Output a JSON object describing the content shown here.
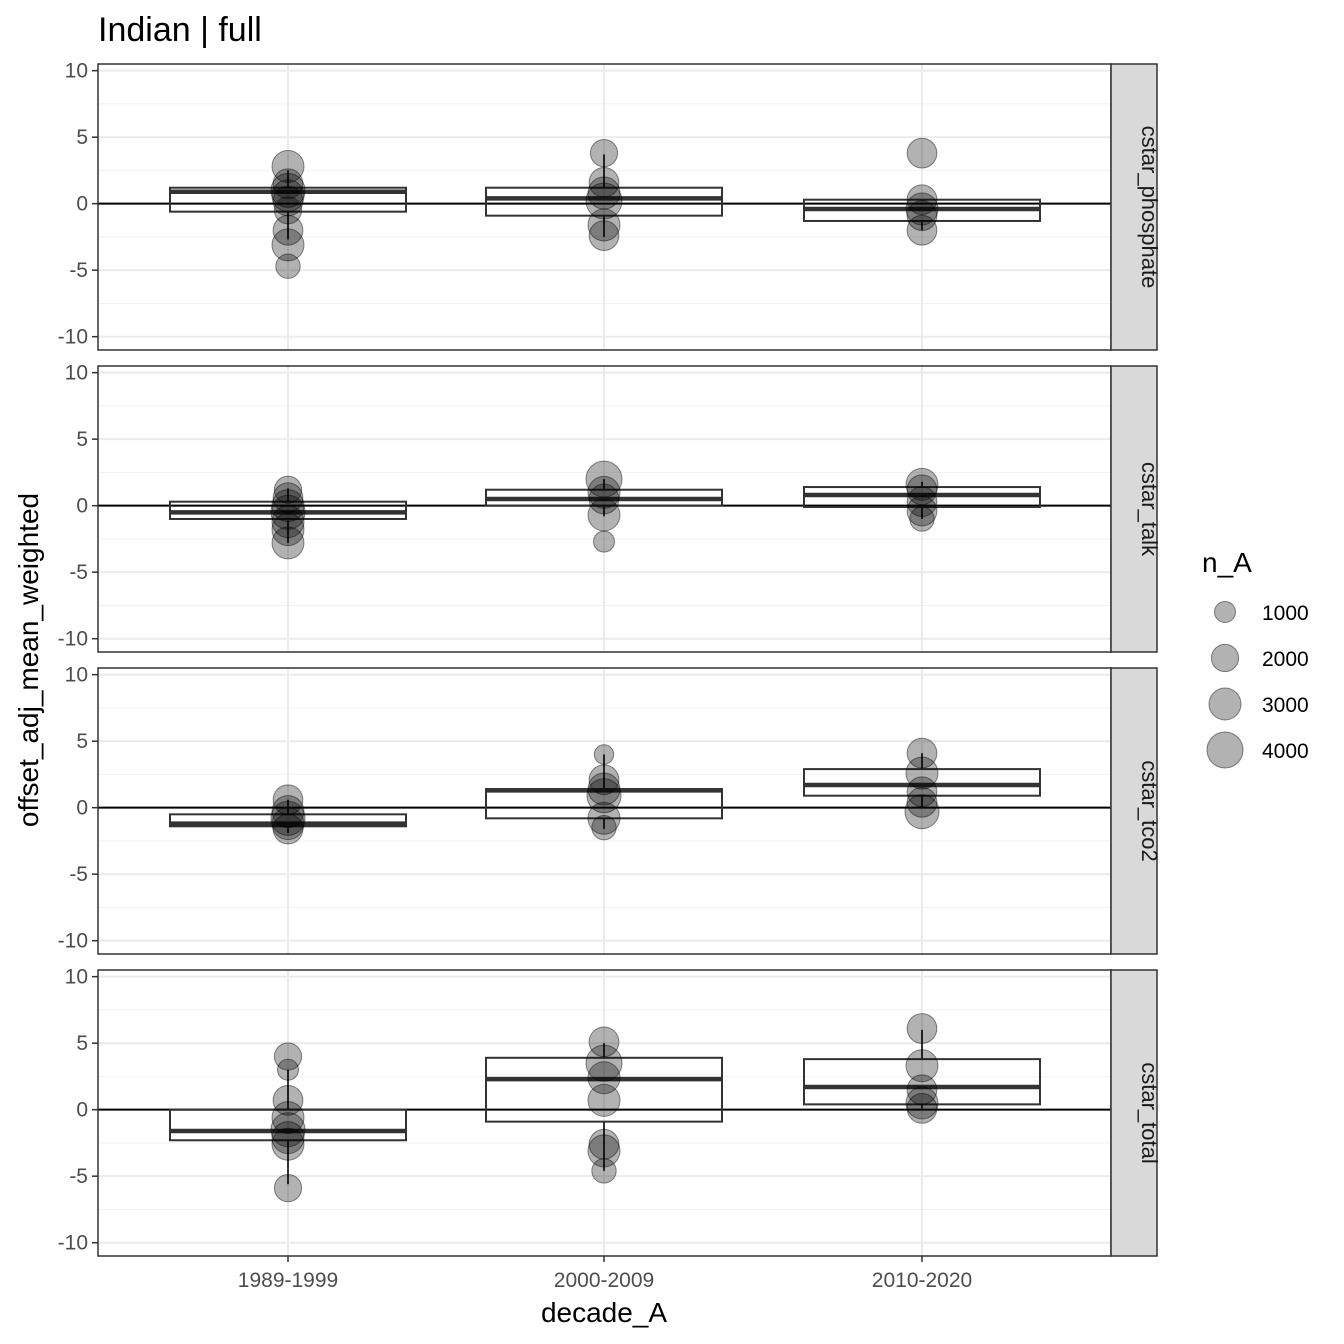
{
  "chart_data": {
    "type": "boxplot",
    "title": "Indian | full",
    "xlabel": "decade_A",
    "ylabel": "offset_adj_mean_weighted",
    "categories": [
      "1989-1999",
      "2000-2009",
      "2010-2020"
    ],
    "ylim": [
      -11,
      10.5
    ],
    "yticks": [
      10,
      5,
      0,
      -5,
      -10
    ],
    "grid": true,
    "hline": 0,
    "legend": {
      "title": "n_A",
      "position": "right",
      "entries": [
        {
          "label": "1000",
          "size": 1000
        },
        {
          "label": "2000",
          "size": 2000
        },
        {
          "label": "3000",
          "size": 3000
        },
        {
          "label": "4000",
          "size": 4000
        }
      ]
    },
    "facets": [
      {
        "label": "cstar_phosphate",
        "boxes": [
          {
            "category": "1989-1999",
            "q1": -0.6,
            "median": 0.9,
            "q3": 1.2,
            "whisker_low": -2.7,
            "whisker_high": 2.5
          },
          {
            "category": "2000-2009",
            "q1": -0.9,
            "median": 0.4,
            "q3": 1.2,
            "whisker_low": -2.5,
            "whisker_high": 3.7
          },
          {
            "category": "2010-2020",
            "q1": -1.3,
            "median": -0.4,
            "q3": 0.3,
            "whisker_low": -2.0,
            "whisker_high": 0.3
          }
        ],
        "points": [
          {
            "category": "1989-1999",
            "y": 2.8,
            "n": 3000
          },
          {
            "category": "1989-1999",
            "y": 1.5,
            "n": 2500
          },
          {
            "category": "1989-1999",
            "y": 1.0,
            "n": 3500
          },
          {
            "category": "1989-1999",
            "y": 0.6,
            "n": 3000
          },
          {
            "category": "1989-1999",
            "y": 0.2,
            "n": 2500
          },
          {
            "category": "1989-1999",
            "y": -0.5,
            "n": 2000
          },
          {
            "category": "1989-1999",
            "y": -2.0,
            "n": 2500
          },
          {
            "category": "1989-1999",
            "y": -3.1,
            "n": 3000
          },
          {
            "category": "1989-1999",
            "y": -4.7,
            "n": 1500
          },
          {
            "category": "2000-2009",
            "y": 3.8,
            "n": 2000
          },
          {
            "category": "2000-2009",
            "y": 1.6,
            "n": 2500
          },
          {
            "category": "2000-2009",
            "y": 0.8,
            "n": 3000
          },
          {
            "category": "2000-2009",
            "y": 0.2,
            "n": 4000
          },
          {
            "category": "2000-2009",
            "y": -1.6,
            "n": 3000
          },
          {
            "category": "2000-2009",
            "y": -2.4,
            "n": 2500
          },
          {
            "category": "2010-2020",
            "y": 3.8,
            "n": 2500
          },
          {
            "category": "2010-2020",
            "y": 0.3,
            "n": 2500
          },
          {
            "category": "2010-2020",
            "y": -0.4,
            "n": 3000
          },
          {
            "category": "2010-2020",
            "y": -0.9,
            "n": 2500
          },
          {
            "category": "2010-2020",
            "y": -2.0,
            "n": 2500
          }
        ]
      },
      {
        "label": "cstar_talk",
        "boxes": [
          {
            "category": "1989-1999",
            "q1": -1.0,
            "median": -0.5,
            "q3": 0.3,
            "whisker_low": -2.8,
            "whisker_high": 1.3
          },
          {
            "category": "2000-2009",
            "q1": 0.0,
            "median": 0.5,
            "q3": 1.2,
            "whisker_low": -0.8,
            "whisker_high": 2.0
          },
          {
            "category": "2010-2020",
            "q1": -0.1,
            "median": 0.8,
            "q3": 1.4,
            "whisker_low": -1.0,
            "whisker_high": 1.8
          }
        ],
        "points": [
          {
            "category": "1989-1999",
            "y": 1.2,
            "n": 2000
          },
          {
            "category": "1989-1999",
            "y": 0.6,
            "n": 2500
          },
          {
            "category": "1989-1999",
            "y": 0.0,
            "n": 3000
          },
          {
            "category": "1989-1999",
            "y": -0.5,
            "n": 3500
          },
          {
            "category": "1989-1999",
            "y": -1.2,
            "n": 3000
          },
          {
            "category": "1989-1999",
            "y": -1.8,
            "n": 3000
          },
          {
            "category": "1989-1999",
            "y": -2.8,
            "n": 3000
          },
          {
            "category": "2000-2009",
            "y": 2.0,
            "n": 4000
          },
          {
            "category": "2000-2009",
            "y": 1.0,
            "n": 3000
          },
          {
            "category": "2000-2009",
            "y": 0.5,
            "n": 2500
          },
          {
            "category": "2000-2009",
            "y": -0.7,
            "n": 3000
          },
          {
            "category": "2000-2009",
            "y": -2.7,
            "n": 1000
          },
          {
            "category": "2010-2020",
            "y": 1.6,
            "n": 3000
          },
          {
            "category": "2010-2020",
            "y": 1.2,
            "n": 2500
          },
          {
            "category": "2010-2020",
            "y": 0.3,
            "n": 2500
          },
          {
            "category": "2010-2020",
            "y": -0.4,
            "n": 2500
          },
          {
            "category": "2010-2020",
            "y": -1.0,
            "n": 1500
          }
        ]
      },
      {
        "label": "cstar_tco2",
        "boxes": [
          {
            "category": "1989-1999",
            "q1": -1.4,
            "median": -1.2,
            "q3": -0.5,
            "whisker_low": -1.9,
            "whisker_high": 0.6
          },
          {
            "category": "2000-2009",
            "q1": -0.8,
            "median": 1.3,
            "q3": 1.4,
            "whisker_low": -1.6,
            "whisker_high": 4.0
          },
          {
            "category": "2010-2020",
            "q1": 0.9,
            "median": 1.7,
            "q3": 2.9,
            "whisker_low": 0.0,
            "whisker_high": 4.1
          }
        ],
        "points": [
          {
            "category": "1989-1999",
            "y": 0.6,
            "n": 2500
          },
          {
            "category": "1989-1999",
            "y": -0.3,
            "n": 3000
          },
          {
            "category": "1989-1999",
            "y": -0.8,
            "n": 3500
          },
          {
            "category": "1989-1999",
            "y": -1.2,
            "n": 3000
          },
          {
            "category": "1989-1999",
            "y": -1.6,
            "n": 2500
          },
          {
            "category": "2000-2009",
            "y": 4.0,
            "n": 800
          },
          {
            "category": "2000-2009",
            "y": 2.1,
            "n": 2500
          },
          {
            "category": "2000-2009",
            "y": 1.4,
            "n": 3000
          },
          {
            "category": "2000-2009",
            "y": 0.9,
            "n": 3500
          },
          {
            "category": "2000-2009",
            "y": -0.8,
            "n": 3000
          },
          {
            "category": "2000-2009",
            "y": -1.5,
            "n": 1500
          },
          {
            "category": "2010-2020",
            "y": 4.1,
            "n": 2500
          },
          {
            "category": "2010-2020",
            "y": 2.6,
            "n": 3000
          },
          {
            "category": "2010-2020",
            "y": 1.2,
            "n": 2500
          },
          {
            "category": "2010-2020",
            "y": 0.4,
            "n": 2500
          },
          {
            "category": "2010-2020",
            "y": -0.3,
            "n": 3500
          }
        ]
      },
      {
        "label": "cstar_total",
        "boxes": [
          {
            "category": "1989-1999",
            "q1": -2.3,
            "median": -1.6,
            "q3": 0.0,
            "whisker_low": -5.6,
            "whisker_high": 3.0
          },
          {
            "category": "2000-2009",
            "q1": -0.9,
            "median": 2.3,
            "q3": 3.9,
            "whisker_low": -4.6,
            "whisker_high": 5.0
          },
          {
            "category": "2010-2020",
            "q1": 0.4,
            "median": 1.7,
            "q3": 3.8,
            "whisker_low": 0.1,
            "whisker_high": 6.0
          }
        ],
        "points": [
          {
            "category": "1989-1999",
            "y": 4.0,
            "n": 2000
          },
          {
            "category": "1989-1999",
            "y": 3.0,
            "n": 1000
          },
          {
            "category": "1989-1999",
            "y": 0.7,
            "n": 2500
          },
          {
            "category": "1989-1999",
            "y": -0.6,
            "n": 3000
          },
          {
            "category": "1989-1999",
            "y": -1.5,
            "n": 3500
          },
          {
            "category": "1989-1999",
            "y": -2.1,
            "n": 3000
          },
          {
            "category": "1989-1999",
            "y": -2.6,
            "n": 3000
          },
          {
            "category": "1989-1999",
            "y": -5.9,
            "n": 2000
          },
          {
            "category": "2000-2009",
            "y": 5.1,
            "n": 2500
          },
          {
            "category": "2000-2009",
            "y": 3.5,
            "n": 4000
          },
          {
            "category": "2000-2009",
            "y": 2.4,
            "n": 3000
          },
          {
            "category": "2000-2009",
            "y": 0.7,
            "n": 3000
          },
          {
            "category": "2000-2009",
            "y": -2.6,
            "n": 2500
          },
          {
            "category": "2000-2009",
            "y": -3.1,
            "n": 3000
          },
          {
            "category": "2000-2009",
            "y": -4.6,
            "n": 1500
          },
          {
            "category": "2010-2020",
            "y": 6.1,
            "n": 2500
          },
          {
            "category": "2010-2020",
            "y": 3.3,
            "n": 3000
          },
          {
            "category": "2010-2020",
            "y": 1.5,
            "n": 2500
          },
          {
            "category": "2010-2020",
            "y": 0.5,
            "n": 3000
          },
          {
            "category": "2010-2020",
            "y": 0.1,
            "n": 2500
          }
        ]
      }
    ]
  }
}
